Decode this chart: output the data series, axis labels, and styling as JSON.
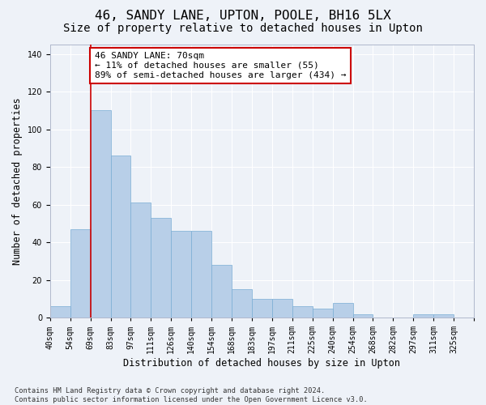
{
  "title": "46, SANDY LANE, UPTON, POOLE, BH16 5LX",
  "subtitle": "Size of property relative to detached houses in Upton",
  "xlabel": "Distribution of detached houses by size in Upton",
  "ylabel": "Number of detached properties",
  "bar_values": [
    6,
    47,
    110,
    86,
    61,
    53,
    46,
    46,
    28,
    15,
    10,
    10,
    6,
    5,
    8,
    2,
    0,
    0,
    2,
    2,
    0
  ],
  "bin_labels": [
    "40sqm",
    "54sqm",
    "69sqm",
    "83sqm",
    "97sqm",
    "111sqm",
    "126sqm",
    "140sqm",
    "154sqm",
    "168sqm",
    "183sqm",
    "197sqm",
    "211sqm",
    "225sqm",
    "240sqm",
    "254sqm",
    "268sqm",
    "282sqm",
    "297sqm",
    "311sqm",
    "325sqm"
  ],
  "bar_color": "#b8cfe8",
  "bar_edge_color": "#7aadd4",
  "reference_line_x_label": "69sqm",
  "reference_line_color": "#cc0000",
  "annotation_text": "46 SANDY LANE: 70sqm\n← 11% of detached houses are smaller (55)\n89% of semi-detached houses are larger (434) →",
  "annotation_box_color": "#cc0000",
  "ylim": [
    0,
    145
  ],
  "yticks": [
    0,
    20,
    40,
    60,
    80,
    100,
    120,
    140
  ],
  "footnote": "Contains HM Land Registry data © Crown copyright and database right 2024.\nContains public sector information licensed under the Open Government Licence v3.0.",
  "bg_color": "#eef2f8",
  "grid_color": "#ffffff",
  "title_fontsize": 11.5,
  "subtitle_fontsize": 10,
  "axis_label_fontsize": 8.5,
  "tick_fontsize": 7,
  "annotation_fontsize": 8,
  "footnote_fontsize": 6.2
}
